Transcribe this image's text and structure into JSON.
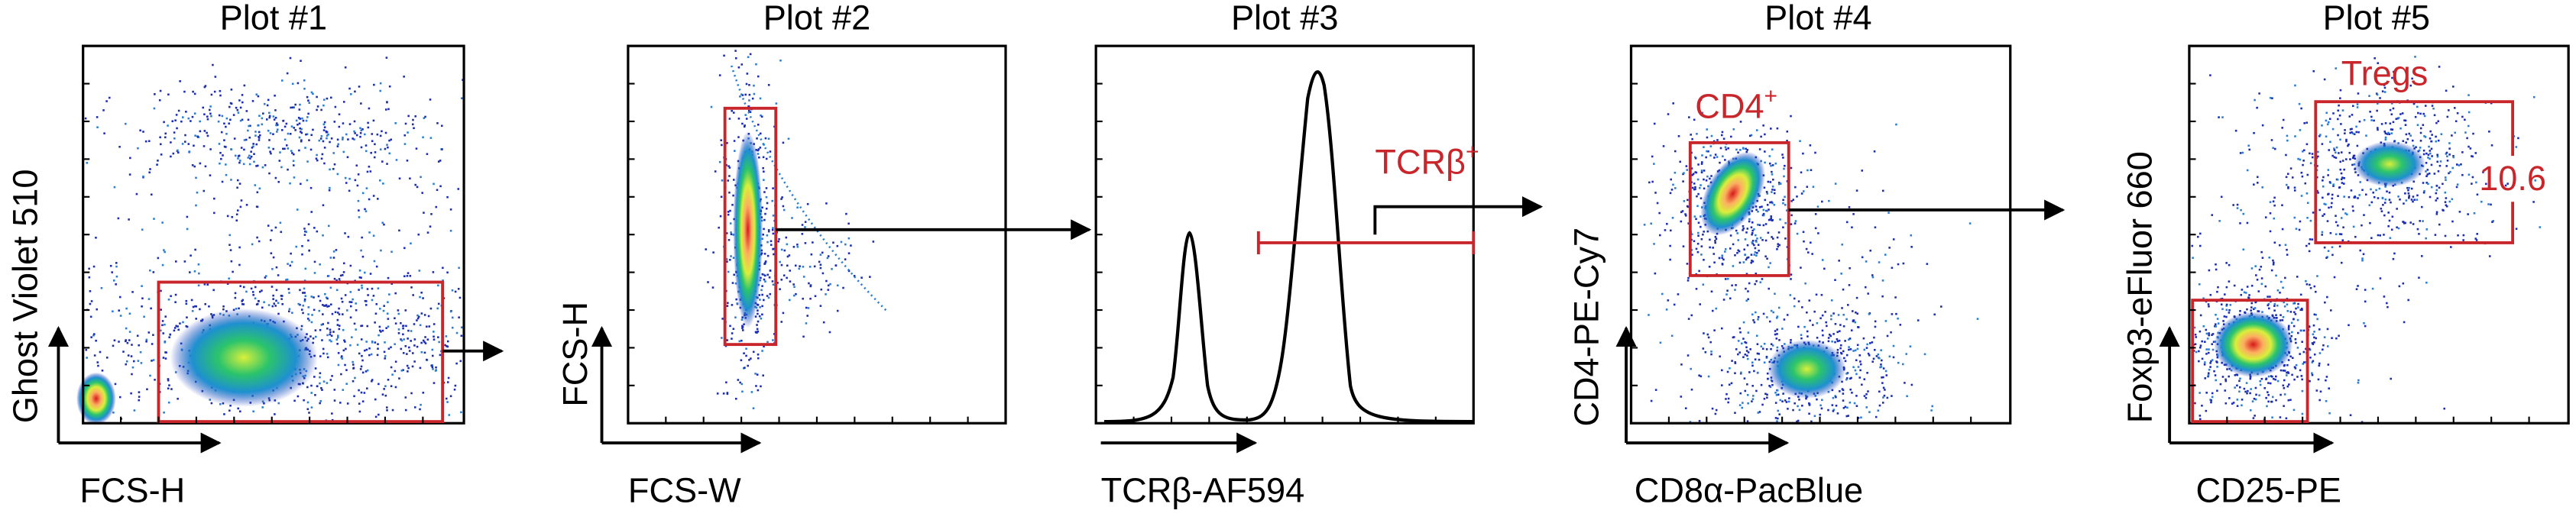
{
  "plots": [
    {
      "title": "Plot #1",
      "y_label": "Ghost Violet 510",
      "x_label": "FCS-H"
    },
    {
      "title": "Plot #2",
      "y_label": "FCS-H",
      "x_label": "FCS-W"
    },
    {
      "title": "Plot #3",
      "x_label": "TCRβ-AF594",
      "gate": {
        "text": "TCRβ",
        "superscript": "+"
      }
    },
    {
      "title": "Plot #4",
      "y_label": "CD4-PE-Cy7",
      "x_label": "CD8α-PacBlue",
      "gate": {
        "text": "CD4",
        "superscript": "+"
      }
    },
    {
      "title": "Plot #5",
      "y_label": "Foxp3-eFluor 660",
      "x_label": "CD25-PE",
      "gate": {
        "text": "Tregs",
        "frequency": 10.6
      }
    }
  ]
}
